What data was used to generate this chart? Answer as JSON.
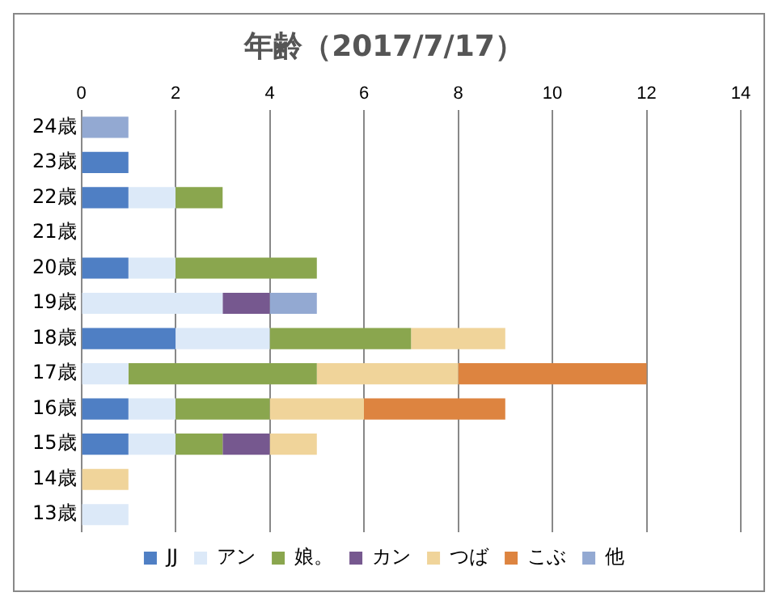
{
  "chart_data": {
    "type": "bar",
    "title": "年齢（2017/7/17）",
    "orientation": "horizontal",
    "stacked": true,
    "categories": [
      "24歳",
      "23歳",
      "22歳",
      "21歳",
      "20歳",
      "19歳",
      "18歳",
      "17歳",
      "16歳",
      "15歳",
      "14歳",
      "13歳"
    ],
    "series": [
      {
        "name": "JJ",
        "color": "#4f7fc4",
        "values": [
          0,
          1,
          1,
          0,
          1,
          0,
          2,
          0,
          1,
          1,
          0,
          0
        ]
      },
      {
        "name": "アン",
        "color": "#dce9f8",
        "values": [
          0,
          0,
          1,
          0,
          1,
          3,
          2,
          1,
          1,
          1,
          0,
          1
        ]
      },
      {
        "name": "娘。",
        "color": "#8aa64e",
        "values": [
          0,
          0,
          1,
          0,
          3,
          0,
          3,
          4,
          2,
          1,
          0,
          0
        ]
      },
      {
        "name": "カン",
        "color": "#76588f",
        "values": [
          0,
          0,
          0,
          0,
          0,
          1,
          0,
          0,
          0,
          1,
          0,
          0
        ]
      },
      {
        "name": "つば",
        "color": "#f0d49a",
        "values": [
          0,
          0,
          0,
          0,
          0,
          0,
          2,
          3,
          2,
          1,
          1,
          0
        ]
      },
      {
        "name": "こぶ",
        "color": "#dd8440",
        "values": [
          0,
          0,
          0,
          0,
          0,
          0,
          0,
          4,
          3,
          0,
          0,
          0
        ]
      },
      {
        "name": "他",
        "color": "#93a9d2",
        "values": [
          1,
          0,
          0,
          0,
          0,
          1,
          0,
          0,
          0,
          0,
          0,
          0
        ]
      }
    ],
    "xlim": [
      0,
      14
    ],
    "xticks": [
      0,
      2,
      4,
      6,
      8,
      10,
      12,
      14
    ],
    "grid": "x",
    "legend": "bottom"
  }
}
